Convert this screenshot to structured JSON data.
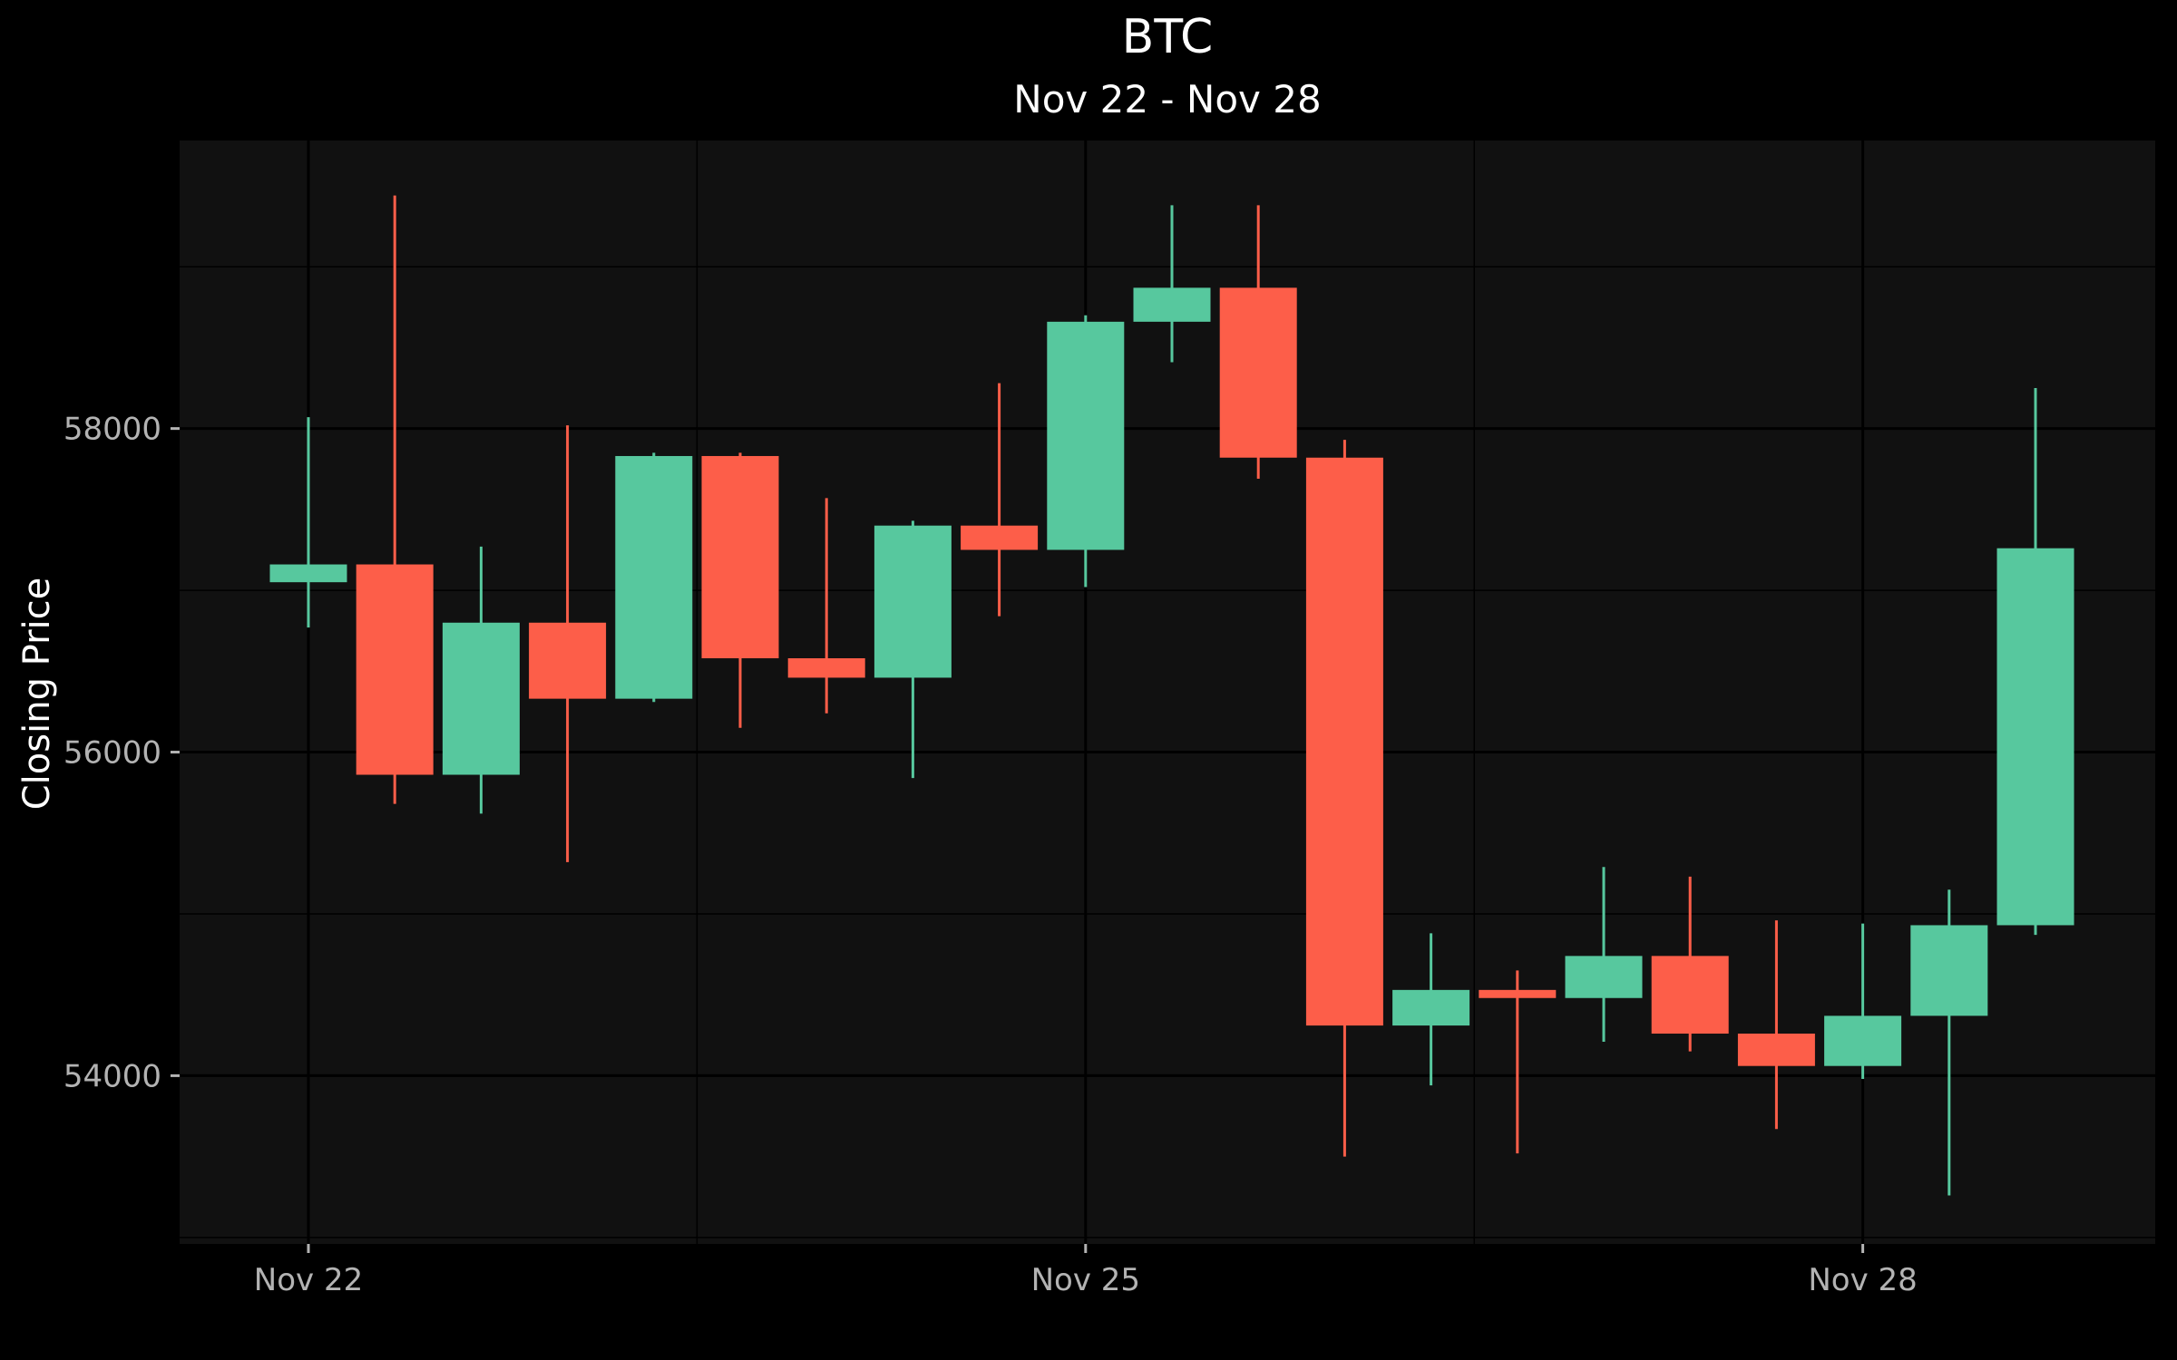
{
  "chart_data": {
    "type": "candlestick",
    "title": "BTC",
    "subtitle": "Nov 22 - Nov 28",
    "ylabel": "Closing Price",
    "xlabel": "",
    "x_ticks": [
      "Nov 22",
      "Nov 25",
      "Nov 28"
    ],
    "y_ticks": [
      54000,
      56000,
      58000
    ],
    "ylim": [
      52960,
      59780
    ],
    "grid": true,
    "colors": {
      "increasing": "#57c89e",
      "decreasing": "#fd5e49",
      "panel": "#111111",
      "background": "#000000",
      "grid": "#000000"
    },
    "candles": [
      {
        "open": 57050,
        "high": 58070,
        "low": 56770,
        "close": 57160
      },
      {
        "open": 57160,
        "high": 59440,
        "low": 55680,
        "close": 55860
      },
      {
        "open": 55860,
        "high": 57270,
        "low": 55620,
        "close": 56800
      },
      {
        "open": 56800,
        "high": 58020,
        "low": 55320,
        "close": 56330
      },
      {
        "open": 56330,
        "high": 57850,
        "low": 56310,
        "close": 57830
      },
      {
        "open": 57830,
        "high": 57850,
        "low": 56150,
        "close": 56580
      },
      {
        "open": 56580,
        "high": 57570,
        "low": 56240,
        "close": 56460
      },
      {
        "open": 56460,
        "high": 57430,
        "low": 55840,
        "close": 57400
      },
      {
        "open": 57400,
        "high": 58280,
        "low": 56840,
        "close": 57250
      },
      {
        "open": 57250,
        "high": 58700,
        "low": 57020,
        "close": 58660
      },
      {
        "open": 58660,
        "high": 59380,
        "low": 58410,
        "close": 58870
      },
      {
        "open": 58870,
        "high": 59380,
        "low": 57690,
        "close": 57820
      },
      {
        "open": 57820,
        "high": 57930,
        "low": 53500,
        "close": 54310
      },
      {
        "open": 54310,
        "high": 54880,
        "low": 53940,
        "close": 54530
      },
      {
        "open": 54530,
        "high": 54650,
        "low": 53520,
        "close": 54480
      },
      {
        "open": 54480,
        "high": 55290,
        "low": 54210,
        "close": 54740
      },
      {
        "open": 54740,
        "high": 55230,
        "low": 54150,
        "close": 54260
      },
      {
        "open": 54260,
        "high": 54960,
        "low": 53670,
        "close": 54060
      },
      {
        "open": 54060,
        "high": 54940,
        "low": 53980,
        "close": 54370
      },
      {
        "open": 54370,
        "high": 55150,
        "low": 53260,
        "close": 54930
      },
      {
        "open": 54930,
        "high": 58250,
        "low": 54870,
        "close": 57260
      }
    ]
  }
}
